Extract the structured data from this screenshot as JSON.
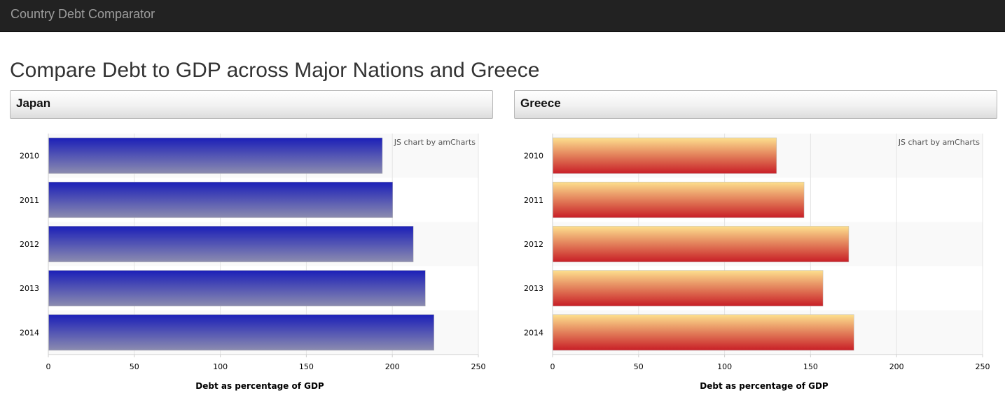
{
  "navbar": {
    "brand": "Country Debt Comparator"
  },
  "page": {
    "title": "Compare Debt to GDP across Major Nations and Greece"
  },
  "colors": {
    "japan_top": "#1b1fb8",
    "japan_bottom": "#8c8caf",
    "greece_top": "#fde08e",
    "greece_bottom": "#c81e26"
  },
  "chart_data": [
    {
      "type": "bar",
      "orientation": "horizontal",
      "panel_title": "Japan",
      "credit": "JS chart by amCharts",
      "categories": [
        "2010",
        "2011",
        "2012",
        "2013",
        "2014"
      ],
      "values": [
        194,
        200,
        212,
        219,
        224
      ],
      "xlabel": "Debt as percentage of GDP",
      "xlim": [
        0,
        250
      ],
      "xticks": [
        0,
        50,
        100,
        150,
        200,
        250
      ],
      "grid": true
    },
    {
      "type": "bar",
      "orientation": "horizontal",
      "panel_title": "Greece",
      "credit": "JS chart by amCharts",
      "categories": [
        "2010",
        "2011",
        "2012",
        "2013",
        "2014"
      ],
      "values": [
        130,
        146,
        172,
        157,
        175
      ],
      "xlabel": "Debt as percentage of GDP",
      "xlim": [
        0,
        250
      ],
      "xticks": [
        0,
        50,
        100,
        150,
        200,
        250
      ],
      "grid": true
    }
  ]
}
